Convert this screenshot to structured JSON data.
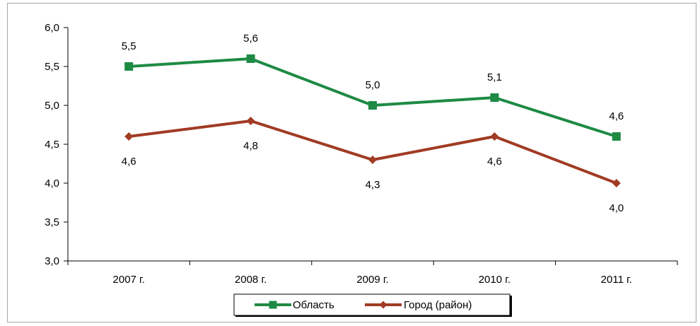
{
  "chart_data": {
    "type": "line",
    "categories": [
      "2007 г.",
      "2008 г.",
      "2009 г.",
      "2010 г.",
      "2011 г."
    ],
    "y_ticks": [
      "3,0",
      "3,5",
      "4,0",
      "4,5",
      "5,0",
      "5,5",
      "6,0"
    ],
    "ylim": [
      3.0,
      6.0
    ],
    "series": [
      {
        "name": "Область",
        "values": [
          5.5,
          5.6,
          5.0,
          5.1,
          4.6
        ],
        "labels": [
          "5,5",
          "5,6",
          "5,0",
          "5,1",
          "4,6"
        ],
        "color": "#1e8a44",
        "marker": "square",
        "label_position": "above"
      },
      {
        "name": "Город (район)",
        "values": [
          4.6,
          4.8,
          4.3,
          4.6,
          4.0
        ],
        "labels": [
          "4,6",
          "4,8",
          "4,3",
          "4,6",
          "4,0"
        ],
        "color": "#a13b24",
        "marker": "diamond",
        "label_position": "below"
      }
    ],
    "grid": false,
    "legend_position": "bottom"
  }
}
